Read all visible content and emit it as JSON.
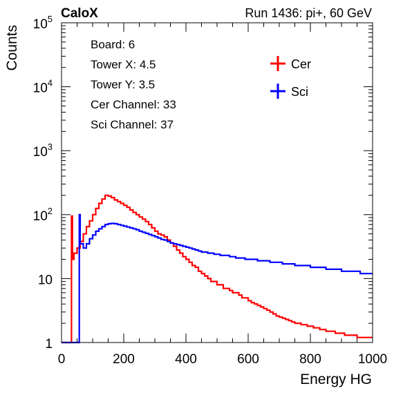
{
  "header": {
    "experiment": "CaloX",
    "run_info": "Run 1436: pi+, 60 GeV"
  },
  "info_box": {
    "lines": [
      "Board: 6",
      "Tower X: 4.5",
      "Tower Y: 3.5",
      "Cer Channel: 33",
      "Sci Channel: 37"
    ]
  },
  "chart_data": {
    "type": "line",
    "drawstyle": "step histogram",
    "xlabel": "Energy HG",
    "ylabel": "Counts",
    "xlim": [
      0,
      1000
    ],
    "ylim": [
      1,
      100000
    ],
    "yscale": "log",
    "xticks": [
      0,
      200,
      400,
      600,
      800,
      1000
    ],
    "xtick_labels": [
      "0",
      "200",
      "400",
      "600",
      "800",
      "1000"
    ],
    "yticks": [
      1,
      10,
      100,
      1000,
      10000,
      100000
    ],
    "ytick_labels": [
      {
        "base": "1",
        "exp": ""
      },
      {
        "base": "10",
        "exp": ""
      },
      {
        "base": "10",
        "exp": "2"
      },
      {
        "base": "10",
        "exp": "3"
      },
      {
        "base": "10",
        "exp": "4"
      },
      {
        "base": "10",
        "exp": "5"
      }
    ],
    "grid": false,
    "legend_position": "top-right",
    "series": [
      {
        "name": "Cer",
        "color": "#ff0000",
        "points": [
          [
            0,
            1
          ],
          [
            30,
            1
          ],
          [
            32,
            95
          ],
          [
            35,
            20
          ],
          [
            40,
            25
          ],
          [
            50,
            30
          ],
          [
            60,
            38
          ],
          [
            70,
            50
          ],
          [
            80,
            65
          ],
          [
            90,
            80
          ],
          [
            100,
            100
          ],
          [
            110,
            125
          ],
          [
            120,
            150
          ],
          [
            130,
            175
          ],
          [
            140,
            200
          ],
          [
            150,
            195
          ],
          [
            160,
            185
          ],
          [
            170,
            170
          ],
          [
            180,
            160
          ],
          [
            190,
            150
          ],
          [
            200,
            140
          ],
          [
            210,
            130
          ],
          [
            220,
            118
          ],
          [
            230,
            108
          ],
          [
            240,
            100
          ],
          [
            250,
            92
          ],
          [
            260,
            85
          ],
          [
            270,
            78
          ],
          [
            280,
            70
          ],
          [
            290,
            62
          ],
          [
            300,
            55
          ],
          [
            310,
            50
          ],
          [
            320,
            48
          ],
          [
            330,
            45
          ],
          [
            340,
            40
          ],
          [
            350,
            36
          ],
          [
            360,
            32
          ],
          [
            370,
            28
          ],
          [
            380,
            25
          ],
          [
            390,
            22
          ],
          [
            400,
            20
          ],
          [
            410,
            18
          ],
          [
            420,
            16
          ],
          [
            430,
            15
          ],
          [
            440,
            13
          ],
          [
            450,
            12
          ],
          [
            460,
            11
          ],
          [
            470,
            10
          ],
          [
            480,
            9
          ],
          [
            490,
            9
          ],
          [
            500,
            8
          ],
          [
            510,
            8
          ],
          [
            520,
            7
          ],
          [
            530,
            7
          ],
          [
            540,
            6.5
          ],
          [
            550,
            6
          ],
          [
            560,
            6
          ],
          [
            570,
            5.5
          ],
          [
            580,
            5
          ],
          [
            590,
            5
          ],
          [
            600,
            4.5
          ],
          [
            610,
            4.2
          ],
          [
            620,
            4
          ],
          [
            630,
            3.8
          ],
          [
            640,
            3.6
          ],
          [
            650,
            3.4
          ],
          [
            660,
            3.2
          ],
          [
            670,
            3
          ],
          [
            680,
            2.8
          ],
          [
            690,
            2.6
          ],
          [
            700,
            2.5
          ],
          [
            710,
            2.4
          ],
          [
            720,
            2.3
          ],
          [
            730,
            2.2
          ],
          [
            740,
            2.1
          ],
          [
            750,
            2
          ],
          [
            760,
            2
          ],
          [
            770,
            1.9
          ],
          [
            780,
            1.9
          ],
          [
            790,
            1.8
          ],
          [
            800,
            1.8
          ],
          [
            810,
            1.7
          ],
          [
            820,
            1.7
          ],
          [
            830,
            1.6
          ],
          [
            840,
            1.6
          ],
          [
            850,
            1.5
          ],
          [
            860,
            1.5
          ],
          [
            870,
            1.5
          ],
          [
            880,
            1.4
          ],
          [
            890,
            1.4
          ],
          [
            900,
            1.4
          ],
          [
            910,
            1.3
          ],
          [
            920,
            1.3
          ],
          [
            930,
            1.3
          ],
          [
            940,
            1.3
          ],
          [
            950,
            1.2
          ],
          [
            960,
            1.2
          ],
          [
            970,
            1.2
          ],
          [
            980,
            1.2
          ],
          [
            990,
            1.2
          ],
          [
            1000,
            1.2
          ]
        ]
      },
      {
        "name": "Sci",
        "color": "#0000ff",
        "points": [
          [
            0,
            1
          ],
          [
            55,
            1
          ],
          [
            57,
            100
          ],
          [
            60,
            35
          ],
          [
            70,
            30
          ],
          [
            80,
            35
          ],
          [
            90,
            42
          ],
          [
            100,
            48
          ],
          [
            110,
            55
          ],
          [
            120,
            60
          ],
          [
            130,
            65
          ],
          [
            140,
            70
          ],
          [
            150,
            72
          ],
          [
            160,
            73
          ],
          [
            170,
            72
          ],
          [
            180,
            70
          ],
          [
            190,
            68
          ],
          [
            200,
            66
          ],
          [
            210,
            64
          ],
          [
            220,
            62
          ],
          [
            230,
            60
          ],
          [
            240,
            58
          ],
          [
            250,
            55
          ],
          [
            260,
            53
          ],
          [
            270,
            51
          ],
          [
            280,
            49
          ],
          [
            290,
            47
          ],
          [
            300,
            45
          ],
          [
            310,
            43
          ],
          [
            320,
            41
          ],
          [
            330,
            40
          ],
          [
            340,
            38
          ],
          [
            350,
            36
          ],
          [
            360,
            35
          ],
          [
            370,
            34
          ],
          [
            380,
            33
          ],
          [
            390,
            32
          ],
          [
            400,
            31
          ],
          [
            410,
            30
          ],
          [
            420,
            29
          ],
          [
            430,
            28
          ],
          [
            440,
            27
          ],
          [
            450,
            26
          ],
          [
            460,
            26
          ],
          [
            470,
            25
          ],
          [
            480,
            25
          ],
          [
            490,
            24
          ],
          [
            500,
            24
          ],
          [
            510,
            23
          ],
          [
            520,
            23
          ],
          [
            530,
            23
          ],
          [
            540,
            22
          ],
          [
            550,
            22
          ],
          [
            560,
            21
          ],
          [
            570,
            21
          ],
          [
            580,
            21
          ],
          [
            590,
            20
          ],
          [
            600,
            20
          ],
          [
            610,
            20
          ],
          [
            620,
            20
          ],
          [
            630,
            19
          ],
          [
            640,
            19
          ],
          [
            650,
            19
          ],
          [
            660,
            19
          ],
          [
            670,
            18
          ],
          [
            680,
            18
          ],
          [
            690,
            18
          ],
          [
            700,
            18
          ],
          [
            710,
            17
          ],
          [
            720,
            17
          ],
          [
            730,
            17
          ],
          [
            740,
            17
          ],
          [
            750,
            16
          ],
          [
            760,
            16
          ],
          [
            770,
            16
          ],
          [
            780,
            16
          ],
          [
            790,
            16
          ],
          [
            800,
            15
          ],
          [
            810,
            15
          ],
          [
            820,
            15
          ],
          [
            830,
            15
          ],
          [
            840,
            15
          ],
          [
            850,
            14
          ],
          [
            860,
            14
          ],
          [
            870,
            14
          ],
          [
            880,
            14
          ],
          [
            890,
            14
          ],
          [
            900,
            13
          ],
          [
            910,
            13
          ],
          [
            920,
            13
          ],
          [
            930,
            13
          ],
          [
            940,
            13
          ],
          [
            950,
            13
          ],
          [
            960,
            12
          ],
          [
            970,
            12
          ],
          [
            980,
            12
          ],
          [
            990,
            12
          ],
          [
            1000,
            12
          ]
        ]
      }
    ]
  }
}
